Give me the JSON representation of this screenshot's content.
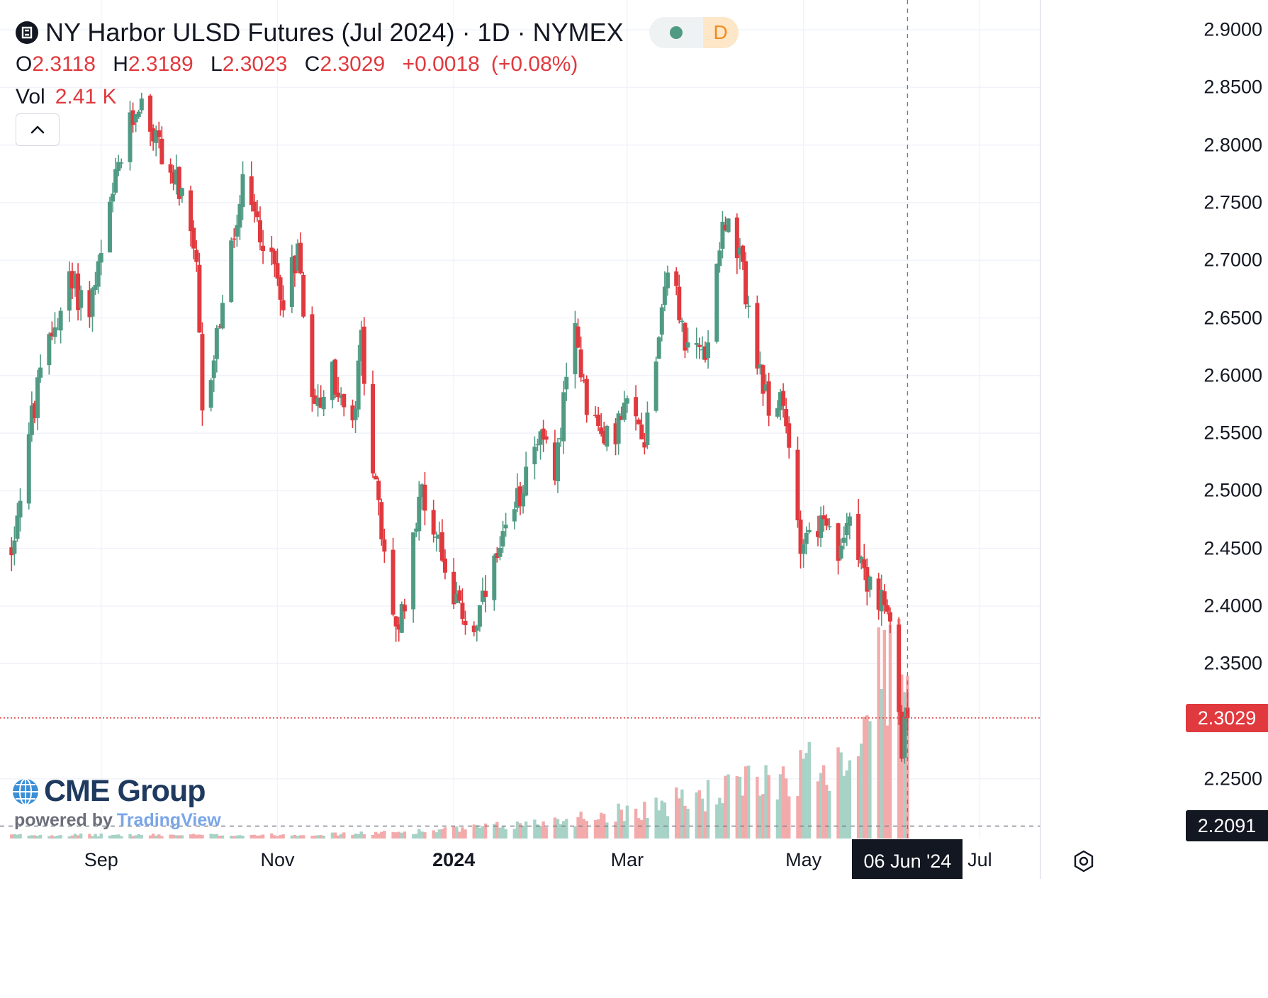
{
  "legend": {
    "title": "NY Harbor ULSD Futures (Jul 2024) · 1D · NYMEX",
    "interval_badge": "D",
    "status_dot_color": "#509a84",
    "open_label": "O",
    "open": "2.3118",
    "high_label": "H",
    "high": "2.3189",
    "low_label": "L",
    "low": "2.3023",
    "close_label": "C",
    "close": "2.3029",
    "change": "+0.0018",
    "change_pct": "(+0.08%)",
    "volume_label": "Vol",
    "volume": "2.41 K",
    "collapse_icon": "chevron-up-icon"
  },
  "price_axis": {
    "labels": [
      "2.9000",
      "2.8500",
      "2.8000",
      "2.7500",
      "2.7000",
      "2.6500",
      "2.6000",
      "2.5500",
      "2.5000",
      "2.4500",
      "2.4000",
      "2.3500",
      "2.2500"
    ],
    "last_price_tag": "2.3029",
    "crosshair_price_tag": "2.2091"
  },
  "time_axis": {
    "labels": [
      {
        "text": "Sep",
        "bold": false
      },
      {
        "text": "Nov",
        "bold": false
      },
      {
        "text": "2024",
        "bold": true
      },
      {
        "text": "Mar",
        "bold": false
      },
      {
        "text": "May",
        "bold": false
      },
      {
        "text": "Jul",
        "bold": false
      }
    ],
    "crosshair_date_tag": "06 Jun '24"
  },
  "branding": {
    "logo_text": "CME Group",
    "powered_by": "powered by",
    "provider": "TradingView"
  },
  "colors": {
    "up": "#509a84",
    "down": "#e0393e",
    "up_volume": "#a7d2c6",
    "down_volume": "#f3aaab",
    "grid": "#f0f3fa",
    "last_price_line": "#e0393e",
    "crosshair": "#787b86"
  },
  "chart_data": {
    "type": "candlestick",
    "title": "NY Harbor ULSD Futures (Jul 2024) · 1D · NYMEX",
    "xlabel": "",
    "ylabel": "",
    "ylim": [
      2.19,
      2.92
    ],
    "x_range": [
      "2023-07-28",
      "2024-07-22"
    ],
    "grid": true,
    "interval": "1D",
    "last_price": 2.3029,
    "series": [
      {
        "name": "price_path",
        "points": [
          [
            "2023-08-01",
            2.45
          ],
          [
            "2023-08-07",
            2.55
          ],
          [
            "2023-08-14",
            2.63
          ],
          [
            "2023-08-21",
            2.68
          ],
          [
            "2023-08-28",
            2.66
          ],
          [
            "2023-09-01",
            2.7
          ],
          [
            "2023-09-07",
            2.78
          ],
          [
            "2023-09-14",
            2.84
          ],
          [
            "2023-09-21",
            2.8
          ],
          [
            "2023-09-28",
            2.76
          ],
          [
            "2023-10-04",
            2.69
          ],
          [
            "2023-10-06",
            2.56
          ],
          [
            "2023-10-12",
            2.65
          ],
          [
            "2023-10-20",
            2.76
          ],
          [
            "2023-10-27",
            2.72
          ],
          [
            "2023-11-03",
            2.67
          ],
          [
            "2023-11-08",
            2.71
          ],
          [
            "2023-11-14",
            2.57
          ],
          [
            "2023-11-20",
            2.6
          ],
          [
            "2023-11-27",
            2.55
          ],
          [
            "2023-11-30",
            2.63
          ],
          [
            "2023-12-05",
            2.5
          ],
          [
            "2023-12-08",
            2.44
          ],
          [
            "2023-12-13",
            2.37
          ],
          [
            "2023-12-20",
            2.5
          ],
          [
            "2023-12-27",
            2.46
          ],
          [
            "2024-01-02",
            2.4
          ],
          [
            "2024-01-08",
            2.38
          ],
          [
            "2024-01-15",
            2.43
          ],
          [
            "2024-01-22",
            2.48
          ],
          [
            "2024-01-29",
            2.55
          ],
          [
            "2024-02-05",
            2.52
          ],
          [
            "2024-02-12",
            2.64
          ],
          [
            "2024-02-16",
            2.58
          ],
          [
            "2024-02-22",
            2.54
          ],
          [
            "2024-03-01",
            2.57
          ],
          [
            "2024-03-07",
            2.55
          ],
          [
            "2024-03-12",
            2.64
          ],
          [
            "2024-03-15",
            2.7
          ],
          [
            "2024-03-22",
            2.62
          ],
          [
            "2024-03-28",
            2.62
          ],
          [
            "2024-04-03",
            2.74
          ],
          [
            "2024-04-10",
            2.69
          ],
          [
            "2024-04-17",
            2.58
          ],
          [
            "2024-04-24",
            2.57
          ],
          [
            "2024-04-30",
            2.46
          ],
          [
            "2024-05-07",
            2.47
          ],
          [
            "2024-05-14",
            2.44
          ],
          [
            "2024-05-17",
            2.49
          ],
          [
            "2024-05-22",
            2.43
          ],
          [
            "2024-05-28",
            2.4
          ],
          [
            "2024-05-31",
            2.38
          ],
          [
            "2024-06-04",
            2.28
          ],
          [
            "2024-06-06",
            2.3
          ]
        ]
      }
    ],
    "volume": {
      "label": "Vol",
      "last": "2.41 K",
      "peak_period": "late May – early Jun 2024"
    }
  }
}
